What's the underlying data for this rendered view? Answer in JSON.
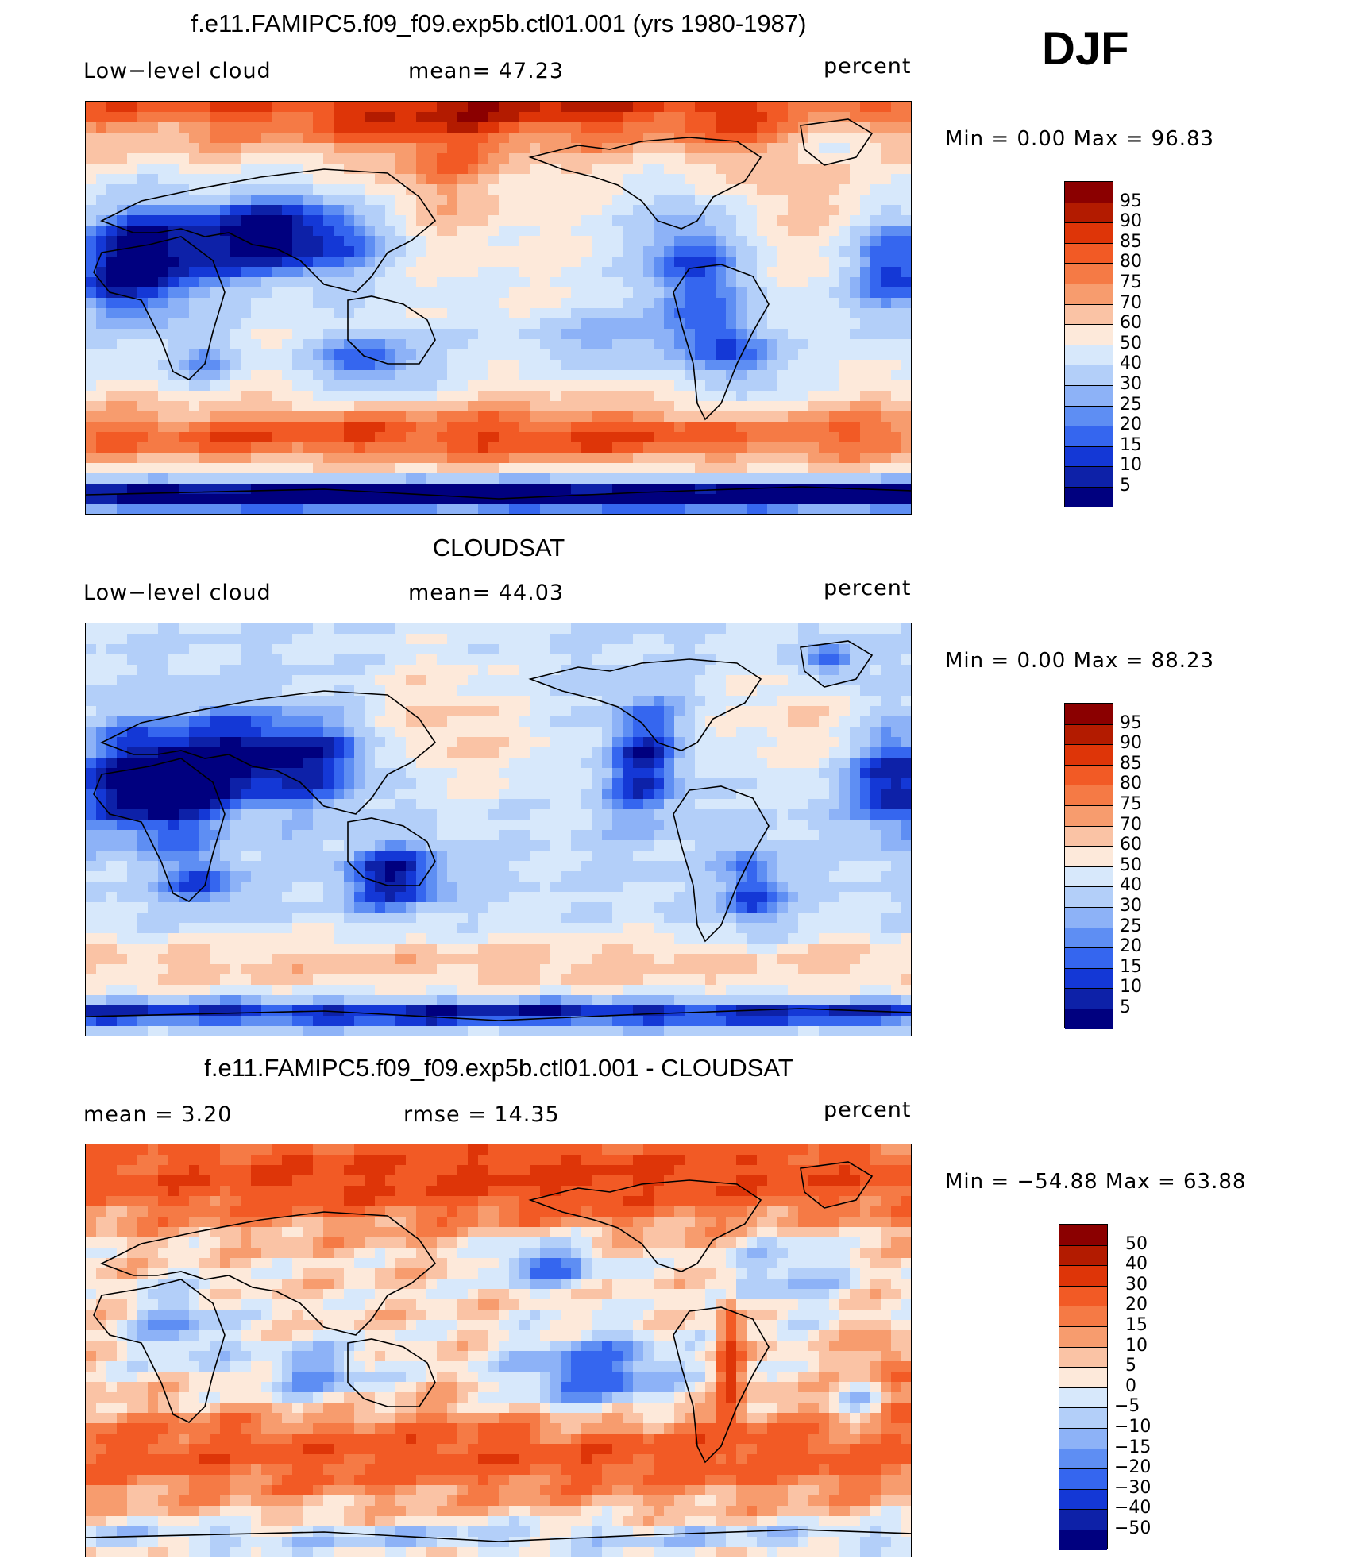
{
  "header": {
    "season": "DJF"
  },
  "panels": [
    {
      "title": "f.e11.FAMIPC5.f09_f09.exp5b.ctl01.001 (yrs 1980-1987)",
      "left_label": "Low−level cloud",
      "center_label": "mean=   47.23",
      "units": "percent",
      "stats": "Min  =     0.00  Max  =    96.83",
      "colorbar": {
        "ticks": [
          "95",
          "90",
          "85",
          "80",
          "75",
          "70",
          "60",
          "50",
          "40",
          "30",
          "25",
          "20",
          "15",
          "10",
          "5"
        ],
        "colors": [
          "#8b0000",
          "#b31b00",
          "#de3508",
          "#f25a25",
          "#f57a45",
          "#f79c6e",
          "#fac3a5",
          "#fde9da",
          "#d7e8fb",
          "#b3cff9",
          "#8db2f7",
          "#5e8ef3",
          "#3566ef",
          "#1438d6",
          "#0d21a8",
          "#00007f"
        ]
      },
      "field_kind": "model"
    },
    {
      "title": "CLOUDSAT",
      "left_label": "Low−level cloud",
      "center_label": "mean=   44.03",
      "units": "percent",
      "stats": "Min  =     0.00  Max  =    88.23",
      "colorbar": {
        "ticks": [
          "95",
          "90",
          "85",
          "80",
          "75",
          "70",
          "60",
          "50",
          "40",
          "30",
          "25",
          "20",
          "15",
          "10",
          "5"
        ],
        "colors": [
          "#8b0000",
          "#b31b00",
          "#de3508",
          "#f25a25",
          "#f57a45",
          "#f79c6e",
          "#fac3a5",
          "#fde9da",
          "#d7e8fb",
          "#b3cff9",
          "#8db2f7",
          "#5e8ef3",
          "#3566ef",
          "#1438d6",
          "#0d21a8",
          "#00007f"
        ]
      },
      "field_kind": "obs"
    },
    {
      "title": "f.e11.FAMIPC5.f09_f09.exp5b.ctl01.001 - CLOUDSAT",
      "left_label": "mean  =      3.20",
      "center_label": "rmse  =     14.35",
      "units": "percent",
      "stats": "Min  =  −54.88  Max  =    63.88",
      "colorbar": {
        "ticks": [
          "50",
          "40",
          "30",
          "20",
          "15",
          "10",
          "5",
          "0",
          "−5",
          "−10",
          "−15",
          "−20",
          "−30",
          "−40",
          "−50"
        ],
        "colors": [
          "#8b0000",
          "#b31b00",
          "#de3508",
          "#f25a25",
          "#f57a45",
          "#f79c6e",
          "#fac3a5",
          "#fde9da",
          "#d7e8fb",
          "#b3cff9",
          "#8db2f7",
          "#5e8ef3",
          "#3566ef",
          "#1438d6",
          "#0d21a8",
          "#00007f"
        ]
      },
      "field_kind": "diff"
    }
  ],
  "chart_data": {
    "type": "heatmap",
    "variable": "Low−level cloud",
    "season": "DJF",
    "units": "percent",
    "panels": [
      {
        "title": "f.e11.FAMIPC5.f09_f09.exp5b.ctl01.001 (yrs 1980-1987)",
        "mean": 47.23,
        "min": 0.0,
        "max": 96.83,
        "contour_levels": [
          5,
          10,
          15,
          20,
          25,
          30,
          40,
          50,
          60,
          70,
          75,
          80,
          85,
          90,
          95
        ]
      },
      {
        "title": "CLOUDSAT",
        "mean": 44.03,
        "min": 0.0,
        "max": 88.23,
        "contour_levels": [
          5,
          10,
          15,
          20,
          25,
          30,
          40,
          50,
          60,
          70,
          75,
          80,
          85,
          90,
          95
        ]
      },
      {
        "title": "f.e11.FAMIPC5.f09_f09.exp5b.ctl01.001 - CLOUDSAT",
        "mean": 3.2,
        "rmse": 14.35,
        "min": -54.88,
        "max": 63.88,
        "contour_levels": [
          -50,
          -40,
          -30,
          -20,
          -15,
          -10,
          -5,
          0,
          5,
          10,
          15,
          20,
          30,
          40,
          50
        ]
      }
    ]
  }
}
